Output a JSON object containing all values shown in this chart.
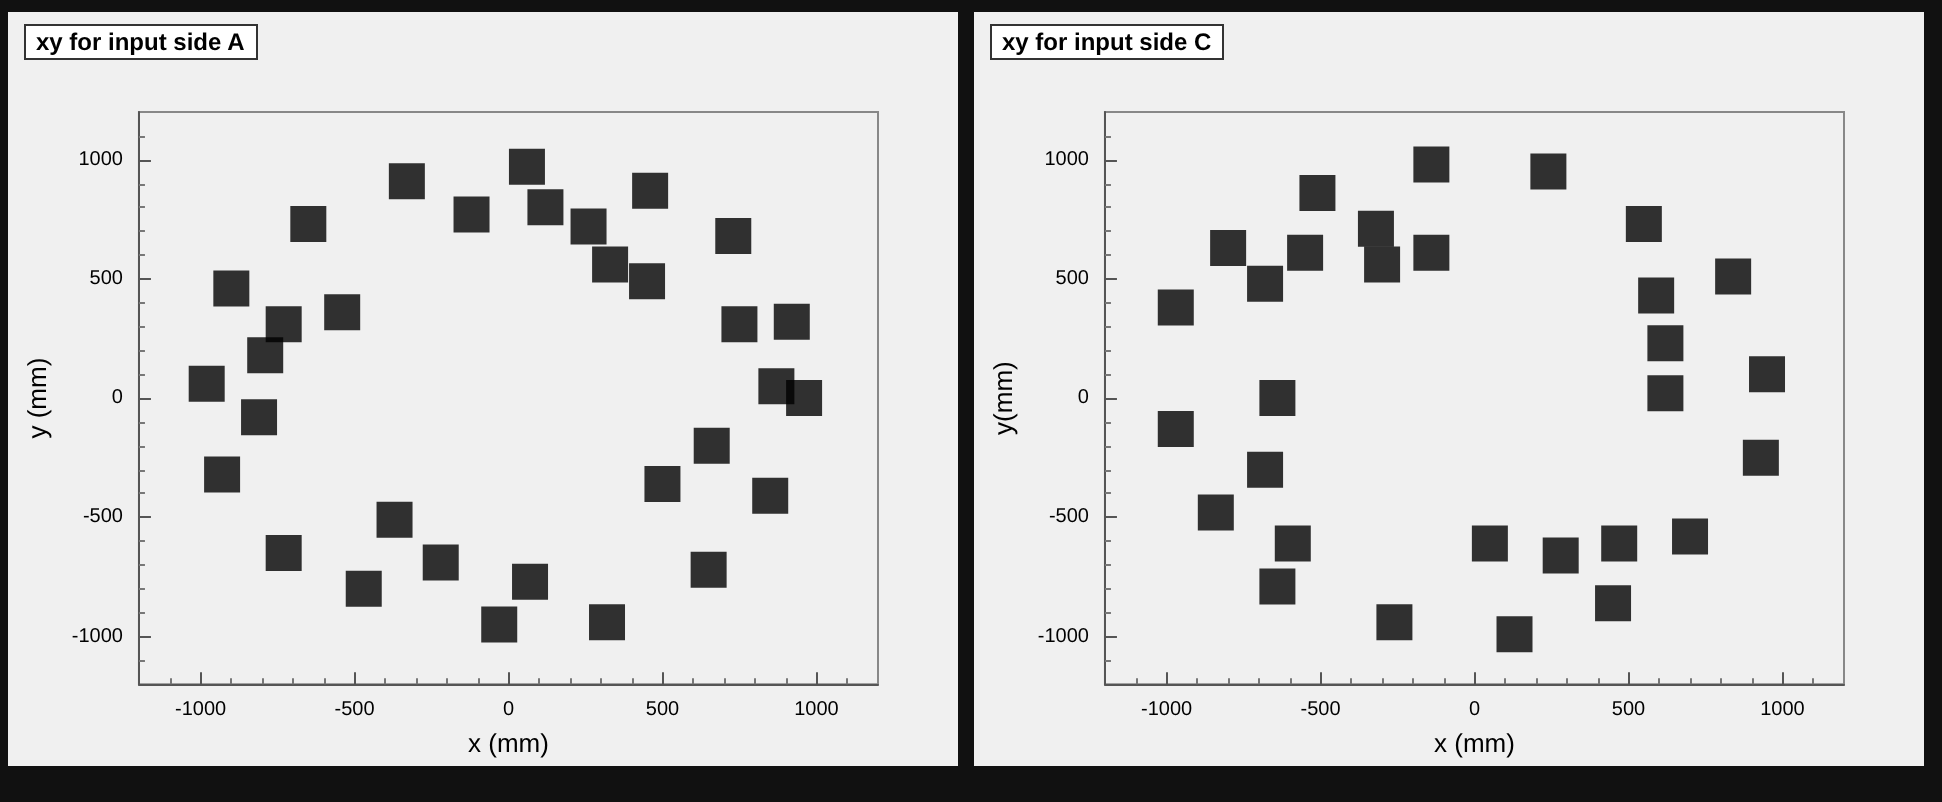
{
  "chart_data": [
    {
      "type": "scatter",
      "title": "xy for input side A",
      "xlabel": "x (mm)",
      "ylabel": "y (mm)",
      "color": "#000000",
      "marker": "square",
      "grid": false,
      "xlim": [
        -1200,
        1200
      ],
      "ylim": [
        -1200,
        1200
      ],
      "xticks": [
        -1000,
        -500,
        0,
        500,
        1000
      ],
      "yticks": [
        -1000,
        -500,
        0,
        500,
        1000
      ],
      "x": [
        -330,
        60,
        460,
        -650,
        -120,
        120,
        260,
        330,
        450,
        730,
        920,
        960,
        750,
        870,
        660,
        500,
        850,
        650,
        320,
        -30,
        70,
        -220,
        -470,
        -370,
        -730,
        -930,
        -980,
        -810,
        -900,
        -730,
        -540,
        -790
      ],
      "values": [
        910,
        970,
        870,
        730,
        770,
        800,
        720,
        560,
        490,
        680,
        320,
        0,
        310,
        50,
        -200,
        -360,
        -410,
        -720,
        -940,
        -950,
        -770,
        -690,
        -800,
        -510,
        -650,
        -320,
        60,
        -80,
        460,
        310,
        360,
        180
      ]
    },
    {
      "type": "scatter",
      "title": "xy for input side C",
      "xlabel": "x (mm)",
      "ylabel": "y(mm)",
      "color": "#000000",
      "marker": "square",
      "grid": false,
      "xlim": [
        -1200,
        1200
      ],
      "ylim": [
        -1200,
        1200
      ],
      "xticks": [
        -1000,
        -500,
        0,
        500,
        1000
      ],
      "yticks": [
        -1000,
        -500,
        0,
        500,
        1000
      ],
      "x": [
        -140,
        240,
        -510,
        550,
        -320,
        -550,
        -800,
        -680,
        -140,
        -300,
        840,
        590,
        620,
        -970,
        950,
        620,
        930,
        -970,
        -640,
        -680,
        -840,
        -590,
        -640,
        700,
        470,
        50,
        280,
        450,
        -260,
        130
      ],
      "values": [
        980,
        950,
        860,
        730,
        710,
        610,
        630,
        480,
        610,
        560,
        510,
        430,
        230,
        380,
        100,
        20,
        -250,
        -130,
        0,
        -300,
        -480,
        -610,
        -790,
        -580,
        -610,
        -610,
        -660,
        -860,
        -940,
        -990
      ]
    }
  ]
}
